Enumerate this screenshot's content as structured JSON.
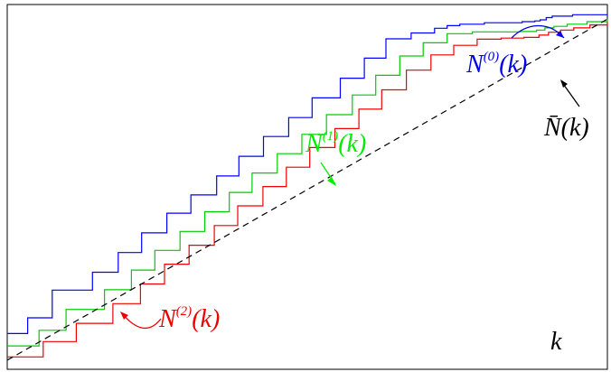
{
  "chart_data": {
    "type": "line",
    "title": "",
    "xlabel": "k",
    "ylabel": "",
    "xlim": [
      0,
      100
    ],
    "ylim": [
      0,
      100
    ],
    "grid": false,
    "series": [
      {
        "name": "N^(0)(k)",
        "color": "#0000ff",
        "style": "step",
        "x": [
          0,
          3.4,
          7.5,
          14.2,
          18.5,
          22.4,
          26.6,
          30.6,
          34.9,
          38.6,
          42.7,
          46.9,
          50.8,
          55.5,
          59.5,
          63.1,
          67.3,
          71.2,
          73.3,
          75.4,
          79.5,
          83.7,
          85.8,
          87.9,
          88.8,
          89.8,
          90.8,
          94.2,
          100
        ],
        "y": [
          9.8,
          14.1,
          21.7,
          26.6,
          32.0,
          37.4,
          42.8,
          47.8,
          53.0,
          58.4,
          63.8,
          69.0,
          74.4,
          79.8,
          85.3,
          90.6,
          92.2,
          93.5,
          94.2,
          94.6,
          95.0,
          95.0,
          95.3,
          95.5,
          95.8,
          96.4,
          96.8,
          97.2,
          97.5
        ]
      },
      {
        "name": "N^(1)(k)",
        "color": "#00cc00",
        "style": "step",
        "x": [
          0,
          5.3,
          9.8,
          16.2,
          20.7,
          24.6,
          28.8,
          32.9,
          37.0,
          40.8,
          45.0,
          49.1,
          53.2,
          57.5,
          61.4,
          65.4,
          69.3,
          73.3,
          77.5,
          81.5,
          85.5,
          88.2,
          89.6,
          91.1,
          93.3,
          96.6,
          100
        ],
        "y": [
          6.4,
          10.7,
          16.4,
          21.8,
          27.2,
          32.6,
          37.8,
          43.2,
          48.5,
          53.8,
          59.1,
          64.4,
          69.8,
          75.2,
          80.6,
          85.9,
          89.5,
          92.0,
          92.5,
          92.5,
          92.6,
          93.0,
          93.6,
          94.0,
          94.6,
          95.3,
          96.0
        ]
      },
      {
        "name": "N^(2)(k)",
        "color": "#ee0000",
        "style": "step",
        "x": [
          0,
          6.0,
          11.5,
          17.6,
          22.2,
          26.2,
          30.3,
          34.5,
          38.4,
          42.6,
          46.5,
          50.4,
          54.6,
          58.6,
          62.4,
          66.5,
          70.6,
          74.4,
          78.3,
          82.3,
          86.1,
          88.6,
          90.2,
          92.2,
          94.4,
          97.1,
          100
        ],
        "y": [
          3.4,
          7.6,
          12.6,
          18.0,
          23.4,
          28.8,
          34.0,
          39.4,
          44.8,
          50.1,
          55.4,
          60.8,
          66.0,
          71.3,
          76.6,
          82.0,
          86.2,
          88.8,
          90.5,
          90.8,
          91.0,
          91.6,
          92.4,
          93.0,
          93.6,
          94.4,
          95.2
        ]
      },
      {
        "name": "N-bar(k)",
        "color": "#000000",
        "style": "dashed",
        "x": [
          0,
          100
        ],
        "y": [
          2.5,
          96.0
        ]
      }
    ],
    "annotations": [
      {
        "base": "N",
        "sup": "(0)",
        "arg": "(k)",
        "color": "#0000ee"
      },
      {
        "base": "N",
        "sup": "(1)",
        "arg": "(k)",
        "color": "#00ee00"
      },
      {
        "base": "N",
        "sup": "(2)",
        "arg": "(k)",
        "color": "#ee0000"
      },
      {
        "text": "N̄(k)",
        "color": "#000000"
      }
    ]
  }
}
